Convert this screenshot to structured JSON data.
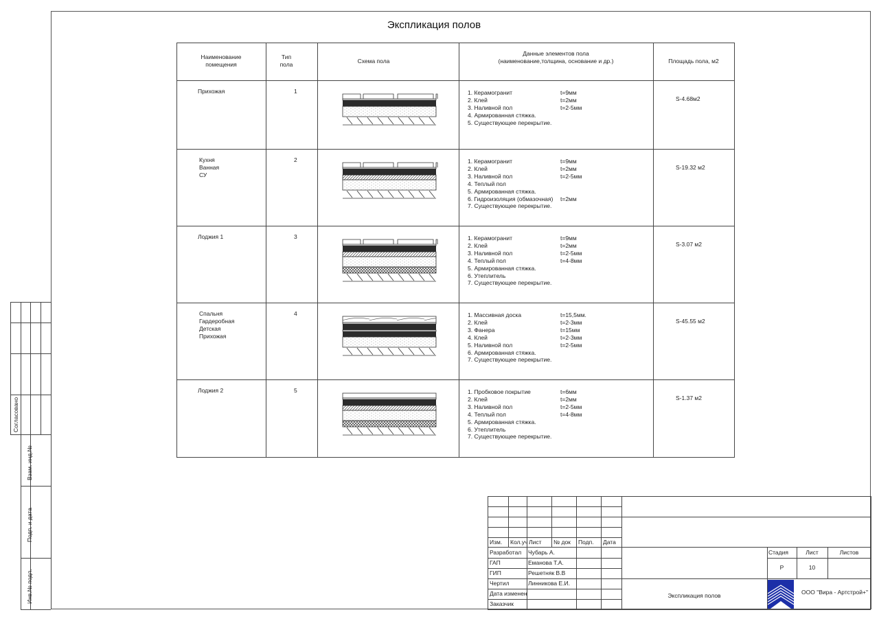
{
  "title": "Экспликация полов",
  "table": {
    "headers": {
      "room": [
        "Наименование",
        "помещения"
      ],
      "type": [
        "Тип",
        "пола"
      ],
      "scheme": "Схема  пола",
      "elements": [
        "Данные  элементов  пола",
        "(наименование,толщина, основание и др.)"
      ],
      "area": "Площадь пола, м2"
    },
    "rows": [
      {
        "rooms": [
          "Прихожая"
        ],
        "type": "1",
        "scheme": [
          "tile",
          "adhesive",
          "self-leveling",
          "screed",
          "slab"
        ],
        "elements": [
          "1. Керамогранит",
          "2. Клей",
          "3. Наливной пол",
          "4. Армированная стяжка.",
          "5. Существующее перекрытие."
        ],
        "thickness": [
          "t=9мм",
          "t=2мм",
          "t=2-5мм",
          "",
          ""
        ],
        "area": "S-4.68м2"
      },
      {
        "rooms": [
          "Кухня",
          "Ванная",
          "СУ"
        ],
        "type": "2",
        "scheme": [
          "tile",
          "adhesive",
          "self-leveling",
          "heated",
          "screed",
          "slab"
        ],
        "elements": [
          "1. Керамогранит",
          "2. Клей",
          "3. Наливной пол",
          "4. Теплый пол",
          "5. Армированная стяжка.",
          "6. Гидроизоляция (обмазочная)",
          "7. Существующее перекрытие."
        ],
        "thickness": [
          "t=9мм",
          "t=2мм",
          "t=2-5мм",
          "",
          "",
          "t=2мм",
          ""
        ],
        "area": "S-19.32 м2"
      },
      {
        "rooms": [
          "Лоджия 1"
        ],
        "type": "3",
        "scheme": [
          "tile",
          "adhesive",
          "heated",
          "self-leveling",
          "screed",
          "insulation",
          "slab"
        ],
        "elements": [
          "1. Керамогранит",
          "2. Клей",
          "3. Наливной пол",
          "4. Теплый пол",
          "5. Армированная стяжка.",
          "6. Утеплитель",
          "7. Существующее перекрытие."
        ],
        "thickness": [
          "t=9мм",
          "t=2мм",
          "t=2-5мм",
          "t=4-8мм",
          "",
          "",
          ""
        ],
        "area": "S-3.07 м2"
      },
      {
        "rooms": [
          "Спальня",
          "Гардеробная",
          "Детская",
          "Прихожая"
        ],
        "type": "4",
        "scheme": [
          "wood",
          "adhesive",
          "plywood",
          "screed",
          "slab"
        ],
        "elements": [
          "1. Массивная доска",
          "2. Клей",
          "3. Фанера",
          "4. Клей",
          "5. Наливной пол",
          "6. Армированная стяжка.",
          "7. Существующее перекрытие."
        ],
        "thickness": [
          "t=15,5мм.",
          "t=2-3мм",
          "t=15мм",
          "t=2-3мм",
          "t=2-5мм",
          "",
          ""
        ],
        "area": "S-45.55 м2"
      },
      {
        "rooms": [
          "Лоджия 2"
        ],
        "type": "5",
        "scheme": [
          "cork",
          "adhesive",
          "heated",
          "self-leveling",
          "screed",
          "insulation",
          "slab"
        ],
        "elements": [
          "1. Пробковое покрытие",
          "2. Клей",
          "3. Наливной пол",
          "4. Теплый пол",
          "5. Армированная стяжка.",
          "6. Утеплитель",
          "7. Существующее перекрытие."
        ],
        "thickness": [
          "t=6мм",
          "t=2мм",
          "t=2-5мм",
          "t=4-8мм",
          "",
          "",
          ""
        ],
        "area": "S-1.37 м2"
      }
    ]
  },
  "side_stamp": {
    "agreed": "Согласовано",
    "replace": "Взам. инд.№",
    "sign_date": "Подп. и дата",
    "inv": "Инв.№ подл."
  },
  "title_block": {
    "rev_headers": [
      "Изм.",
      "Кол.уч",
      "Лист",
      "№ док",
      "Подп.",
      "Дата"
    ],
    "people": [
      {
        "role": "Разработал",
        "name": "Чубарь А."
      },
      {
        "role": "ГАП",
        "name": "Еманова Т.А."
      },
      {
        "role": "ГИП",
        "name": "Решетняк В.В"
      },
      {
        "role": "Чертил",
        "name": "Линникова Е.И."
      },
      {
        "role": "Дата изменен",
        "name": ""
      },
      {
        "role": "Заказчик",
        "name": ""
      }
    ],
    "stage_label": "Стадия",
    "sheet_label": "Лист",
    "sheets_label": "Листов",
    "stage": "Р",
    "sheet": "10",
    "sheets": "",
    "drawing_name": "Экспликация полов",
    "company": "ООО \"Вира - Артстрой+\"",
    "logo_color": "#1c2fa8"
  }
}
